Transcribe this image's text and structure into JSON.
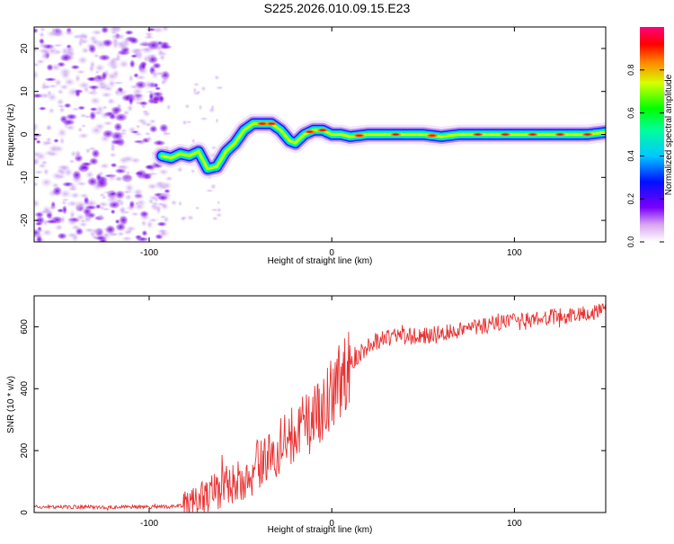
{
  "title": "S225.2026.010.09.15.E23",
  "chart_data": [
    {
      "type": "heatmap",
      "name": "spectrogram",
      "xlabel": "Height of straight line (km)",
      "ylabel": "Frequency (Hz)",
      "xlim": [
        -163,
        150
      ],
      "ylim": [
        -25,
        25
      ],
      "xticks": [
        -100,
        0,
        100
      ],
      "yticks": [
        -20,
        -10,
        0,
        10,
        20
      ],
      "noise_region_x": [
        -163,
        -90
      ],
      "ridge": {
        "x": [
          -93,
          -88,
          -83,
          -78,
          -73,
          -68,
          -63,
          -58,
          -53,
          -48,
          -43,
          -38,
          -33,
          -28,
          -23,
          -20,
          -15,
          -10,
          -5,
          0,
          5,
          10,
          20,
          30,
          40,
          50,
          60,
          70,
          80,
          90,
          100,
          110,
          120,
          130,
          140,
          150
        ],
        "freq": [
          -5,
          -5.5,
          -4.5,
          -5,
          -4,
          -8,
          -7.5,
          -4,
          -2,
          1,
          2.5,
          2.5,
          2.5,
          1,
          -1.5,
          -2,
          0,
          1,
          1,
          0,
          0,
          -0.5,
          0,
          0,
          0,
          0,
          -0.5,
          0,
          0,
          0,
          0,
          0,
          0,
          0,
          0,
          0.5
        ]
      },
      "colorbar": {
        "label": "Normalized spectral amplitude",
        "range": [
          0,
          1
        ],
        "ticks": [
          "0.0",
          "0.2",
          "0.4",
          "0.6",
          "0.8"
        ],
        "tick_values": [
          0,
          0.2,
          0.4,
          0.6,
          0.8
        ]
      }
    },
    {
      "type": "line",
      "name": "snr",
      "xlabel": "Height of straight line (km)",
      "ylabel": "SNR (10 * v/v)",
      "xlim": [
        -163,
        150
      ],
      "ylim": [
        0,
        700
      ],
      "xticks": [
        -100,
        0,
        100
      ],
      "yticks": [
        0,
        200,
        400,
        600
      ],
      "color": "#e83232",
      "envelope": {
        "x": [
          -163,
          -140,
          -120,
          -100,
          -85,
          -80,
          -75,
          -70,
          -65,
          -60,
          -55,
          -50,
          -45,
          -40,
          -35,
          -30,
          -25,
          -20,
          -15,
          -10,
          -5,
          0,
          5,
          10,
          15,
          20,
          25,
          30,
          40,
          50,
          60,
          70,
          80,
          90,
          100,
          110,
          120,
          130,
          140,
          150
        ],
        "y": [
          18,
          18,
          18,
          18,
          19,
          25,
          35,
          50,
          70,
          80,
          95,
          110,
          130,
          160,
          175,
          200,
          230,
          255,
          280,
          300,
          340,
          390,
          430,
          475,
          510,
          540,
          555,
          565,
          570,
          570,
          580,
          590,
          600,
          610,
          615,
          620,
          630,
          635,
          645,
          650
        ]
      }
    }
  ]
}
